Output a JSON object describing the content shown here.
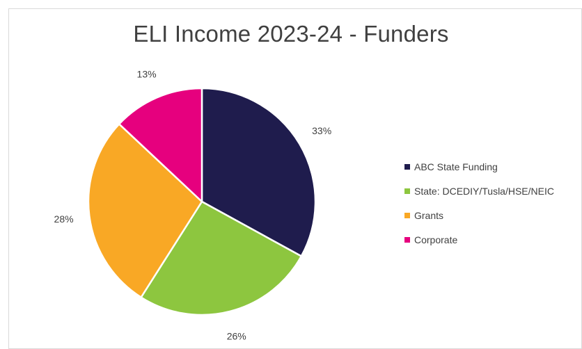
{
  "chart_data": {
    "type": "pie",
    "title": "ELI Income 2023-24 - Funders",
    "categories": [
      "ABC State Funding",
      "State: DCEDIY/Tusla/HSE/NEIC",
      "Grants",
      "Corporate"
    ],
    "values": [
      33,
      26,
      28,
      13
    ],
    "value_labels": [
      "33%",
      "26%",
      "28%",
      "13%"
    ],
    "colors": [
      "#1f1c4d",
      "#8dc63f",
      "#f9a825",
      "#e6007e"
    ],
    "legend_position": "right",
    "start_angle": "top",
    "direction": "clockwise"
  }
}
